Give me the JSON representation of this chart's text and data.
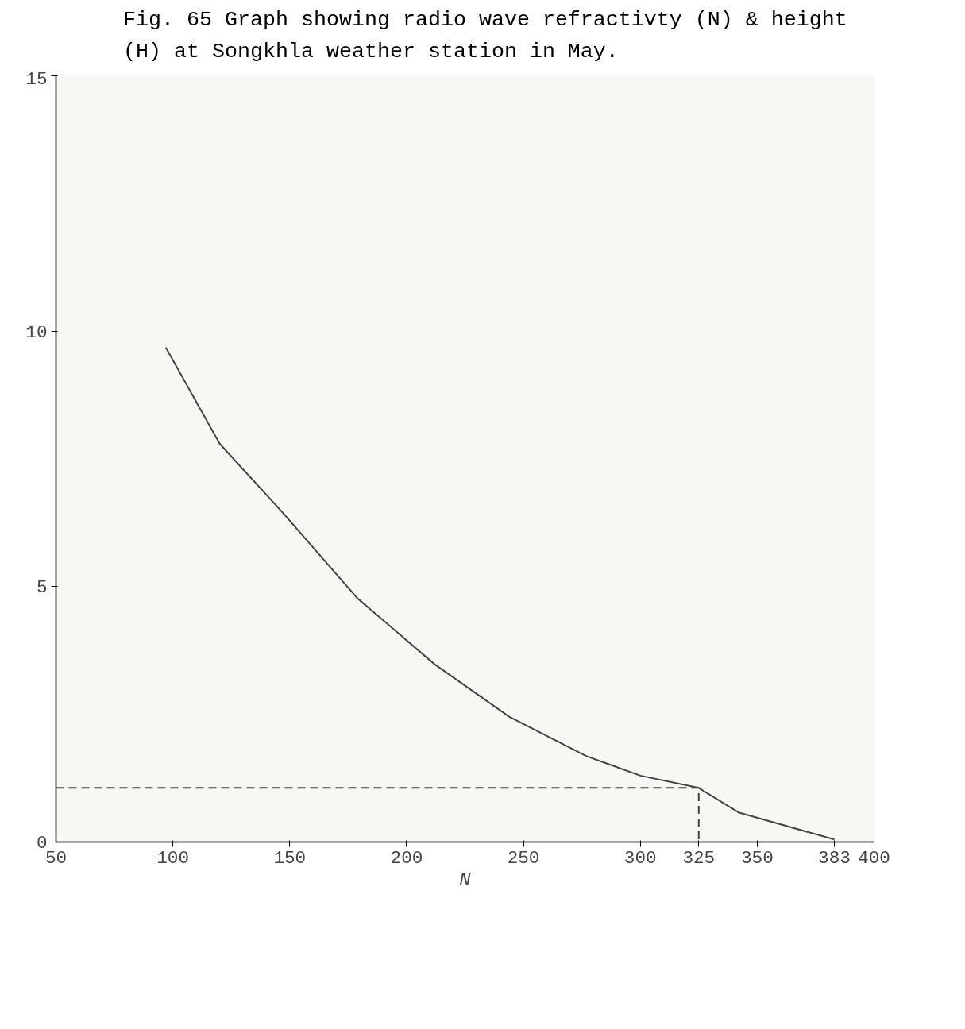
{
  "chart_data": {
    "type": "line",
    "title": "Fig. 65   Graph showing radio wave refractivty (N) & height (H) at Songkhla weather station in May.",
    "xlabel": "N",
    "series": [
      {
        "color": "#444444",
        "x": [
          97,
          120,
          147,
          179,
          212,
          244,
          277,
          300,
          325,
          342,
          383
        ],
        "values": [
          9.68,
          7.8,
          6.45,
          4.77,
          3.48,
          2.45,
          1.68,
          1.3,
          1.06,
          0.58,
          0.05
        ]
      },
      {
        "color": "#444444",
        "line_style": "dashed",
        "x": [
          50,
          325,
          325
        ],
        "values": [
          1.06,
          1.06,
          0
        ]
      }
    ],
    "xlim": [
      50,
      400
    ],
    "ylim": [
      0,
      15
    ],
    "xticks": [
      50,
      100,
      150,
      200,
      250,
      300,
      325,
      350,
      383,
      400
    ],
    "yticks": [
      0,
      5,
      10,
      15
    ],
    "grid": false,
    "marker": "none",
    "line_style": "solid"
  }
}
